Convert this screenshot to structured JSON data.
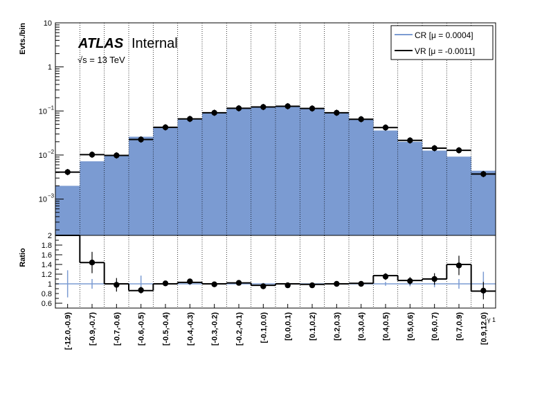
{
  "chart_data": {
    "type": "bar",
    "categories": [
      "[-12.0,-0.9)",
      "[-0.9,-0.7)",
      "[-0.7,-0.6)",
      "[-0.6,-0.5)",
      "[-0.5,-0.4)",
      "[-0.4,-0.3)",
      "[-0.3,-0.2)",
      "[-0.2,-0.1)",
      "[-0.1,0.0)",
      "[0.0,0.1)",
      "[0.1,0.2)",
      "[0.2,0.3)",
      "[0.3,0.4)",
      "[0.4,0.5)",
      "[0.5,0.6)",
      "[0.6,0.7)",
      "[0.7,0.9)",
      "[0.9,12.0)"
    ],
    "x_axis_label": "γ 1",
    "upper_panel": {
      "ylabel": "Evts./bin",
      "yscale": "log",
      "ylim": [
        0.00015,
        10
      ],
      "yticks": [
        {
          "value": 0.001,
          "label": "10",
          "exp": "−3"
        },
        {
          "value": 0.01,
          "label": "10",
          "exp": "−2"
        },
        {
          "value": 0.1,
          "label": "10",
          "exp": "−1"
        },
        {
          "value": 1,
          "label": "1",
          "exp": ""
        },
        {
          "value": 10,
          "label": "10",
          "exp": ""
        }
      ],
      "series": [
        {
          "name": "CR [μ = 0.0004]",
          "style": "filled-histogram",
          "color": "#7b9bd2",
          "values": [
            0.002,
            0.0072,
            0.0098,
            0.026,
            0.042,
            0.064,
            0.091,
            0.113,
            0.122,
            0.127,
            0.114,
            0.091,
            0.064,
            0.036,
            0.02,
            0.0126,
            0.0092,
            0.0044
          ]
        },
        {
          "name": "VR [μ = -0.0011]",
          "style": "line-histogram-with-points",
          "color": "#000000",
          "values": [
            0.0041,
            0.0102,
            0.0098,
            0.0225,
            0.0425,
            0.066,
            0.091,
            0.115,
            0.123,
            0.128,
            0.114,
            0.091,
            0.065,
            0.042,
            0.0215,
            0.0143,
            0.0128,
            0.0037
          ]
        }
      ]
    },
    "lower_panel": {
      "ylabel": "Ratio",
      "ylim": [
        0.5,
        2.0
      ],
      "yticks": [
        {
          "value": 0.6,
          "label": "0.6"
        },
        {
          "value": 0.8,
          "label": "0.8"
        },
        {
          "value": 1.0,
          "label": "1"
        },
        {
          "value": 1.2,
          "label": "1.2"
        },
        {
          "value": 1.4,
          "label": "1.4"
        },
        {
          "value": 1.6,
          "label": "1.6"
        },
        {
          "value": 1.8,
          "label": "1.8"
        },
        {
          "value": 2.0,
          "label": "2"
        }
      ],
      "ratio_line_values": [
        2.05,
        1.44,
        1.0,
        0.86,
        1.0,
        1.03,
        1.0,
        1.02,
        0.97,
        1.0,
        0.99,
        1.0,
        1.01,
        1.17,
        1.07,
        1.1,
        1.4,
        0.85
      ],
      "ratio_point_values": [
        null,
        1.44,
        0.98,
        0.87,
        1.01,
        1.05,
        0.99,
        1.02,
        0.95,
        0.97,
        0.97,
        1.0,
        1.0,
        1.15,
        1.06,
        1.1,
        1.38,
        0.86
      ],
      "ratio_errors": [
        null,
        0.22,
        0.14,
        0.07,
        0.05,
        0.04,
        0.03,
        0.03,
        0.03,
        0.03,
        0.03,
        0.03,
        0.03,
        0.07,
        0.08,
        0.12,
        0.2,
        0.18
      ],
      "reference_errors": [
        0.28,
        0.1,
        0.06,
        0.17,
        0.04,
        0.03,
        0.02,
        0.02,
        0.02,
        0.02,
        0.02,
        0.02,
        0.03,
        0.04,
        0.05,
        0.07,
        0.1,
        0.25
      ]
    },
    "annotations": {
      "atlas": "ATLAS",
      "atlas_suffix": "Internal",
      "energy": "√s = 13 TeV"
    },
    "legend": {
      "placement": "top-right",
      "entries": [
        "CR [μ = 0.0004]",
        "VR [μ = -0.0011]"
      ]
    },
    "grid": "vertical dotted lines at bin edges"
  }
}
